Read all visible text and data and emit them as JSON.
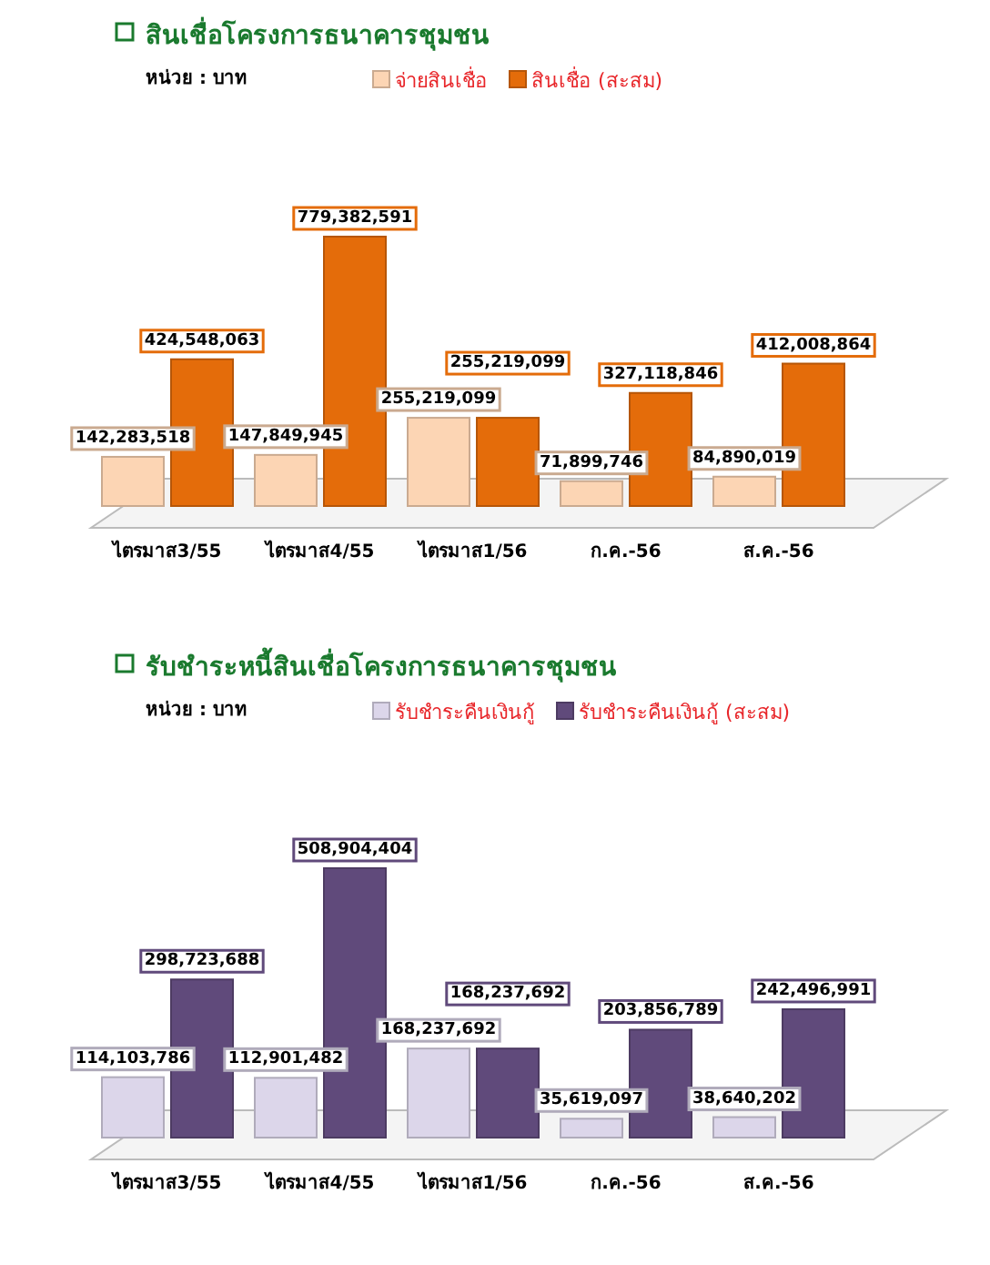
{
  "chart_data": [
    {
      "type": "bar",
      "title": "สินเชื่อโครงการธนาคารชุมชน",
      "annotations": [
        "หน่วย : บาท"
      ],
      "categories": [
        "ไตรมาส3/55",
        "ไตรมาส4/55",
        "ไตรมาส1/56",
        "ก.ค.-56",
        "ส.ค.-56"
      ],
      "legend": "top",
      "series": [
        {
          "name": "จ่ายสินเชื่อ",
          "color": "#fcd5b4",
          "values": [
            142283518,
            147849945,
            255219099,
            71899746,
            84890019
          ],
          "value_labels": [
            "142,283,518",
            "147,849,945",
            "255,219,099",
            "71,899,746",
            "84,890,019"
          ]
        },
        {
          "name": "สินเชื่อ (สะสม)",
          "color": "#e46c0a",
          "values": [
            424548063,
            779382591,
            255219099,
            327118846,
            412008864
          ],
          "value_labels": [
            "424,548,063",
            "779,382,591",
            "255,219,099",
            "327,118,846",
            "412,008,864"
          ]
        }
      ]
    },
    {
      "type": "bar",
      "title": "รับชำระหนี้สินเชื่อโครงการธนาคารชุมชน",
      "annotations": [
        "หน่วย : บาท"
      ],
      "categories": [
        "ไตรมาส3/55",
        "ไตรมาส4/55",
        "ไตรมาส1/56",
        "ก.ค.-56",
        "ส.ค.-56"
      ],
      "legend": "top",
      "series": [
        {
          "name": "รับชำระคืนเงินกู้",
          "color": "#dcd6ea",
          "values": [
            114103786,
            112901482,
            168237692,
            35619097,
            38640202
          ],
          "value_labels": [
            "114,103,786",
            "112,901,482",
            "168,237,692",
            "35,619,097",
            "38,640,202"
          ]
        },
        {
          "name": "รับชำระคืนเงินกู้ (สะสม)",
          "color": "#604a7b",
          "values": [
            298723688,
            508904404,
            168237692,
            203856789,
            242496991
          ],
          "value_labels": [
            "298,723,688",
            "508,904,404",
            "168,237,692",
            "203,856,789",
            "242,496,991"
          ]
        }
      ]
    }
  ]
}
